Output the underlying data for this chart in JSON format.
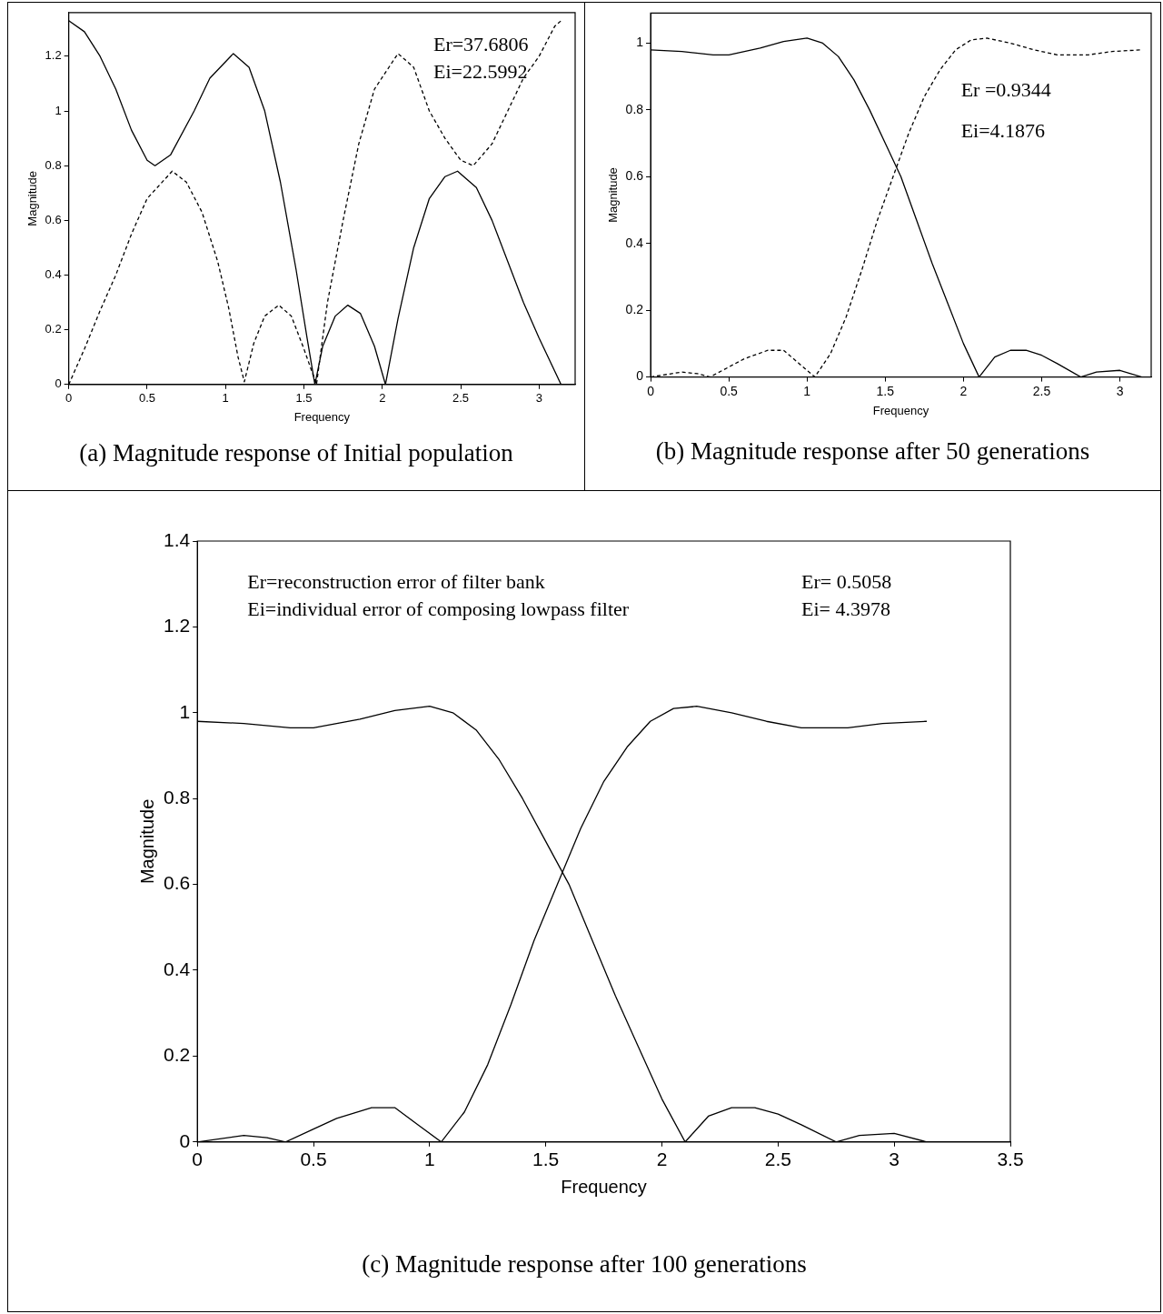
{
  "chart_data": [
    {
      "type": "line",
      "title": "(a) Magnitude response of Initial population",
      "xlabel": "Frequency",
      "ylabel": "Magnitude",
      "xlim": [
        0,
        3.23
      ],
      "ylim": [
        0,
        1.36
      ],
      "xticks": [
        0,
        0.5,
        1,
        1.5,
        2,
        2.5,
        3
      ],
      "yticks": [
        0,
        0.2,
        0.4,
        0.6,
        0.8,
        1,
        1.2
      ],
      "grid": false,
      "legend": false,
      "annotations": [
        "Er=37.6806",
        "Ei=22.5992"
      ],
      "series": [
        {
          "color": "#000000",
          "line_style": "solid",
          "x": [
            0,
            0.1,
            0.2,
            0.3,
            0.4,
            0.5,
            0.55,
            0.65,
            0.8,
            0.9,
            1.05,
            1.15,
            1.25,
            1.35,
            1.45,
            1.52,
            1.57,
            1.62,
            1.7,
            1.78,
            1.86,
            1.95,
            2.02,
            2.1,
            2.2,
            2.3,
            2.4,
            2.48,
            2.6,
            2.7,
            2.8,
            2.9,
            3.0,
            3.14
          ],
          "values": [
            1.33,
            1.29,
            1.2,
            1.08,
            0.93,
            0.82,
            0.8,
            0.84,
            1.0,
            1.12,
            1.21,
            1.16,
            1.0,
            0.74,
            0.42,
            0.17,
            0.0,
            0.14,
            0.25,
            0.29,
            0.26,
            0.14,
            0.0,
            0.24,
            0.5,
            0.68,
            0.76,
            0.78,
            0.72,
            0.6,
            0.45,
            0.3,
            0.17,
            0.0
          ]
        },
        {
          "color": "#000000",
          "line_style": "dashed",
          "x": [
            0,
            0.1,
            0.2,
            0.3,
            0.4,
            0.5,
            0.66,
            0.75,
            0.85,
            0.95,
            1.02,
            1.08,
            1.12,
            1.18,
            1.25,
            1.34,
            1.42,
            1.5,
            1.58,
            1.65,
            1.75,
            1.85,
            1.95,
            2.1,
            2.2,
            2.3,
            2.4,
            2.5,
            2.58,
            2.7,
            2.8,
            2.9,
            3.0,
            3.1,
            3.14
          ],
          "values": [
            0.0,
            0.13,
            0.27,
            0.4,
            0.55,
            0.68,
            0.78,
            0.74,
            0.63,
            0.45,
            0.28,
            0.1,
            0.01,
            0.15,
            0.25,
            0.29,
            0.25,
            0.13,
            0.0,
            0.3,
            0.6,
            0.88,
            1.08,
            1.21,
            1.16,
            1.0,
            0.9,
            0.82,
            0.8,
            0.88,
            1.0,
            1.12,
            1.2,
            1.31,
            1.33
          ]
        }
      ]
    },
    {
      "type": "line",
      "title": "(b) Magnitude response after 50 generations",
      "xlabel": "Frequency",
      "ylabel": "Magnitude",
      "xlim": [
        0,
        3.2
      ],
      "ylim": [
        0,
        1.09
      ],
      "xticks": [
        0,
        0.5,
        1,
        1.5,
        2,
        2.5,
        3
      ],
      "yticks": [
        0,
        0.2,
        0.4,
        0.6,
        0.8,
        1
      ],
      "grid": false,
      "legend": false,
      "annotations": [
        "Er =0.9344",
        "Ei=4.1876"
      ],
      "series": [
        {
          "color": "#000000",
          "line_style": "solid",
          "x": [
            0,
            0.2,
            0.4,
            0.5,
            0.7,
            0.85,
            1.0,
            1.1,
            1.2,
            1.3,
            1.4,
            1.5,
            1.6,
            1.7,
            1.8,
            1.9,
            2.0,
            2.1,
            2.2,
            2.3,
            2.4,
            2.5,
            2.6,
            2.75,
            2.85,
            3.0,
            3.14
          ],
          "values": [
            0.98,
            0.975,
            0.965,
            0.965,
            0.985,
            1.005,
            1.015,
            1.0,
            0.96,
            0.89,
            0.8,
            0.7,
            0.6,
            0.47,
            0.34,
            0.22,
            0.1,
            0.0,
            0.06,
            0.08,
            0.08,
            0.065,
            0.04,
            0.0,
            0.015,
            0.02,
            0.0
          ]
        },
        {
          "color": "#000000",
          "line_style": "dashed",
          "x": [
            0,
            0.2,
            0.3,
            0.38,
            0.5,
            0.6,
            0.75,
            0.85,
            0.95,
            1.05,
            1.15,
            1.25,
            1.35,
            1.45,
            1.55,
            1.65,
            1.75,
            1.85,
            1.95,
            2.05,
            2.15,
            2.3,
            2.45,
            2.6,
            2.8,
            2.95,
            3.14
          ],
          "values": [
            0.0,
            0.015,
            0.01,
            0.0,
            0.03,
            0.055,
            0.08,
            0.08,
            0.04,
            0.0,
            0.07,
            0.18,
            0.32,
            0.47,
            0.6,
            0.73,
            0.84,
            0.92,
            0.98,
            1.01,
            1.015,
            1.0,
            0.98,
            0.965,
            0.965,
            0.975,
            0.98
          ]
        }
      ]
    },
    {
      "type": "line",
      "title": "(c) Magnitude response after 100 generations",
      "xlabel": "Frequency",
      "ylabel": "Magnitude",
      "xlim": [
        0,
        3.5
      ],
      "ylim": [
        0,
        1.4
      ],
      "xticks": [
        0,
        0.5,
        1,
        1.5,
        2,
        2.5,
        3,
        3.5
      ],
      "yticks": [
        0,
        0.2,
        0.4,
        0.6,
        0.8,
        1,
        1.2,
        1.4
      ],
      "grid": false,
      "legend": false,
      "annotations": [
        "Er=reconstruction error of filter bank",
        "Ei=individual error of composing lowpass filter",
        "Er= 0.5058",
        "Ei= 4.3978"
      ],
      "series": [
        {
          "color": "#000000",
          "line_style": "solid",
          "x": [
            0,
            0.2,
            0.4,
            0.5,
            0.7,
            0.85,
            1.0,
            1.1,
            1.2,
            1.3,
            1.4,
            1.5,
            1.6,
            1.7,
            1.8,
            1.9,
            2.0,
            2.1,
            2.2,
            2.3,
            2.4,
            2.5,
            2.6,
            2.75,
            2.85,
            3.0,
            3.14
          ],
          "values": [
            0.98,
            0.975,
            0.965,
            0.965,
            0.985,
            1.005,
            1.015,
            1.0,
            0.96,
            0.89,
            0.8,
            0.7,
            0.6,
            0.47,
            0.34,
            0.22,
            0.1,
            0.0,
            0.06,
            0.08,
            0.08,
            0.065,
            0.04,
            0.0,
            0.015,
            0.02,
            0.0
          ]
        },
        {
          "color": "#000000",
          "line_style": "solid",
          "x": [
            0,
            0.2,
            0.3,
            0.38,
            0.5,
            0.6,
            0.75,
            0.85,
            0.95,
            1.05,
            1.15,
            1.25,
            1.35,
            1.45,
            1.55,
            1.65,
            1.75,
            1.85,
            1.95,
            2.05,
            2.15,
            2.3,
            2.45,
            2.6,
            2.8,
            2.95,
            3.14
          ],
          "values": [
            0.0,
            0.015,
            0.01,
            0.0,
            0.03,
            0.055,
            0.08,
            0.08,
            0.04,
            0.0,
            0.07,
            0.18,
            0.32,
            0.47,
            0.6,
            0.73,
            0.84,
            0.92,
            0.98,
            1.01,
            1.015,
            1.0,
            0.98,
            0.965,
            0.965,
            0.975,
            0.98
          ]
        }
      ]
    }
  ]
}
